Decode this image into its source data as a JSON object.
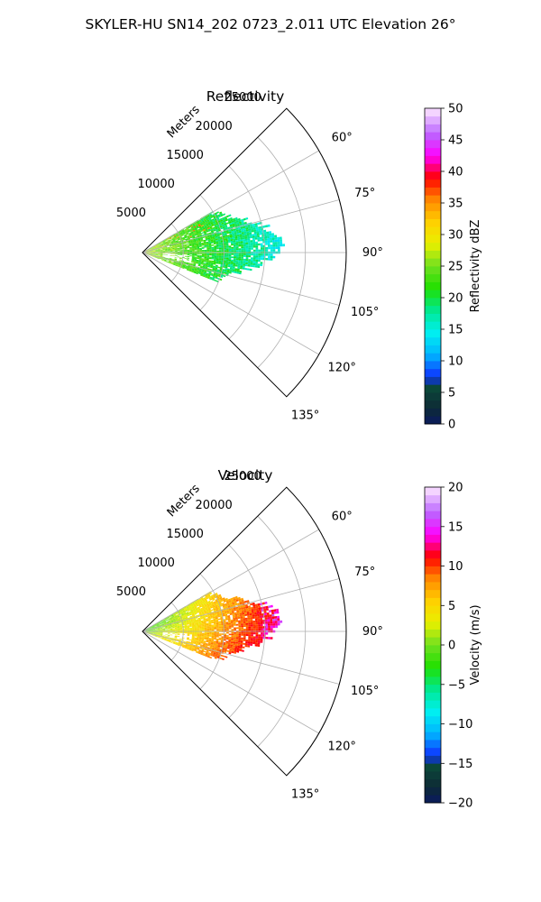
{
  "figure": {
    "suptitle": "SKYLER-HU  SN14_202  0723_2.011 UTC Elevation 26°"
  },
  "chart_data": [
    {
      "type": "heatmap",
      "projection": "polar-sector",
      "title": "Reflectivity",
      "radial_axis_label": "Meters",
      "radial_ticks": [
        5000,
        10000,
        15000,
        20000,
        25000
      ],
      "radial_tick_labels": [
        "5000",
        "10000",
        "15000",
        "20000",
        "25000"
      ],
      "radial_range": [
        0,
        25000
      ],
      "azimuth_range_deg": [
        45,
        135
      ],
      "azimuth_ticks_deg": [
        60,
        75,
        90,
        105,
        120,
        135
      ],
      "azimuth_tick_labels": [
        "60°",
        "75°",
        "90°",
        "105°",
        "120°",
        "135°"
      ],
      "grid": true,
      "colorbar": {
        "label": "Reflectivity dBZ",
        "range": [
          0,
          50
        ],
        "ticks": [
          0,
          5,
          10,
          15,
          20,
          25,
          30,
          35,
          40,
          45,
          50
        ],
        "tick_labels": [
          "0",
          "5",
          "10",
          "15",
          "20",
          "25",
          "30",
          "35",
          "40",
          "45",
          "50"
        ]
      },
      "echo_extent_m": [
        0,
        17000
      ],
      "echo_azimuth_range_deg": [
        60,
        110
      ],
      "value_range_observed": [
        8,
        37
      ]
    },
    {
      "type": "heatmap",
      "projection": "polar-sector",
      "title": "Velocity",
      "radial_axis_label": "Meters",
      "radial_ticks": [
        5000,
        10000,
        15000,
        20000,
        25000
      ],
      "radial_tick_labels": [
        "5000",
        "10000",
        "15000",
        "20000",
        "25000"
      ],
      "radial_range": [
        0,
        25000
      ],
      "azimuth_range_deg": [
        45,
        135
      ],
      "azimuth_ticks_deg": [
        60,
        75,
        90,
        105,
        120,
        135
      ],
      "azimuth_tick_labels": [
        "60°",
        "75°",
        "90°",
        "105°",
        "120°",
        "135°"
      ],
      "grid": true,
      "colorbar": {
        "label": "Velocity (m/s)",
        "range": [
          -20,
          20
        ],
        "ticks": [
          -20,
          -15,
          -10,
          -5,
          0,
          5,
          10,
          15,
          20
        ],
        "tick_labels": [
          "−20",
          "−15",
          "−10",
          "−5",
          "0",
          "5",
          "10",
          "15",
          "20"
        ]
      },
      "echo_extent_m": [
        0,
        17000
      ],
      "echo_azimuth_range_deg": [
        60,
        110
      ],
      "value_range_observed": [
        -3,
        16
      ]
    }
  ]
}
